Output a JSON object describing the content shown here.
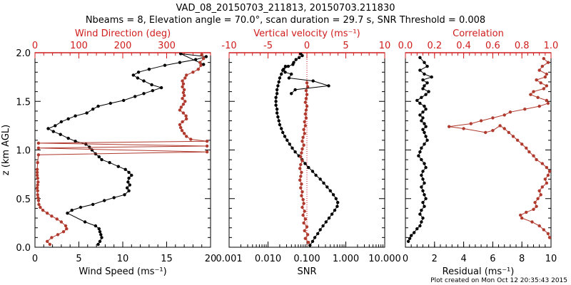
{
  "header": {
    "title_line1": "VAD_08_20150703_211813, 20150703.211830",
    "title_line2": "Nbeams = 8, Elevation angle = 70.0°, scan duration = 29.7 s, SNR Threshold = 0.008"
  },
  "footer": {
    "note": "Plot created on Mon Oct 12 20:35:43 2015"
  },
  "colors": {
    "primary": "#000000",
    "secondary": "#b03a2e",
    "secondary_axis": "#d01c1c"
  },
  "chart_data": [
    {
      "type": "line",
      "panel": "left",
      "title": "Wind Direction (deg)",
      "ylabel": "z (km AGL)",
      "ylim": [
        0,
        2
      ],
      "yticks": [
        "0.0",
        "0.5",
        "1.0",
        "1.5",
        "2.0"
      ],
      "bottom_axis": {
        "label": "Wind Speed (ms⁻¹)",
        "range": [
          0,
          20
        ],
        "ticks": [
          "0",
          "5",
          "10",
          "15",
          "20"
        ]
      },
      "top_axis": {
        "label": "Wind Direction (deg)",
        "range": [
          0,
          400
        ],
        "ticks": [
          "0",
          "100",
          "200",
          "300"
        ]
      },
      "series": [
        {
          "name": "Wind Speed",
          "axis": "bottom",
          "color": "#000000",
          "x": [
            7.2,
            7.4,
            7.6,
            7.5,
            7.4,
            7.3,
            6.9,
            5.7,
            3.7,
            4.2,
            5.2,
            6.6,
            7.9,
            9.0,
            10.2,
            10.7,
            10.5,
            10.8,
            10.6,
            10.7,
            11.0,
            10.7,
            10.3,
            9.5,
            8.5,
            7.6,
            7.3,
            6.9,
            6.5,
            6.2,
            5.8,
            4.6,
            3.8,
            2.9,
            2.1,
            1.5,
            2.3,
            3.0,
            3.8,
            4.6,
            5.9,
            6.6,
            7.2,
            8.6,
            10.1,
            11.4,
            12.4,
            13.4,
            14.4,
            13.3,
            12.4,
            11.7,
            11.2,
            11.8,
            13.0,
            14.8,
            16.5,
            18.3,
            19.5,
            16.6,
            19.2
          ],
          "y": [
            0.03,
            0.06,
            0.1,
            0.13,
            0.16,
            0.19,
            0.22,
            0.26,
            0.35,
            0.38,
            0.41,
            0.44,
            0.48,
            0.51,
            0.54,
            0.58,
            0.61,
            0.64,
            0.67,
            0.71,
            0.74,
            0.77,
            0.8,
            0.83,
            0.87,
            0.9,
            0.93,
            0.96,
            1.0,
            1.03,
            1.06,
            1.09,
            1.12,
            1.16,
            1.19,
            1.22,
            1.25,
            1.29,
            1.32,
            1.35,
            1.38,
            1.42,
            1.45,
            1.48,
            1.51,
            1.55,
            1.58,
            1.61,
            1.64,
            1.67,
            1.71,
            1.74,
            1.77,
            1.8,
            1.83,
            1.87,
            1.9,
            1.93,
            1.96,
            1.99,
            1.88
          ]
        },
        {
          "name": "Wind Direction",
          "axis": "top",
          "color": "#b03a2e",
          "x": [
            34,
            28,
            38,
            52,
            65,
            72,
            70,
            60,
            50,
            38,
            28,
            18,
            12,
            9,
            8,
            7,
            6,
            6,
            5,
            6,
            7,
            6,
            5,
            5,
            5,
            6,
            8,
            392,
            8,
            392,
            8,
            392,
            355,
            345,
            340,
            335,
            332,
            330,
            336,
            345,
            344,
            338,
            330,
            333,
            338,
            342,
            336,
            340,
            338,
            340,
            336,
            338,
            336,
            342,
            345,
            360,
            372,
            378,
            376,
            384,
            380
          ],
          "y": [
            0.03,
            0.06,
            0.1,
            0.13,
            0.16,
            0.19,
            0.22,
            0.26,
            0.29,
            0.32,
            0.35,
            0.38,
            0.41,
            0.44,
            0.48,
            0.51,
            0.54,
            0.58,
            0.61,
            0.64,
            0.67,
            0.71,
            0.74,
            0.77,
            0.8,
            0.87,
            0.95,
            0.98,
            1.02,
            1.04,
            1.07,
            1.09,
            1.11,
            1.14,
            1.17,
            1.2,
            1.23,
            1.26,
            1.29,
            1.32,
            1.35,
            1.38,
            1.41,
            1.44,
            1.47,
            1.5,
            1.53,
            1.56,
            1.59,
            1.62,
            1.65,
            1.68,
            1.71,
            1.74,
            1.77,
            1.8,
            1.83,
            1.87,
            1.9,
            1.94,
            1.98
          ]
        }
      ]
    },
    {
      "type": "line",
      "panel": "middle",
      "title": "Vertical velocity (ms⁻¹)",
      "ylim": [
        0,
        2
      ],
      "bottom_axis": {
        "label": "SNR",
        "scale": "log",
        "range": [
          0.001,
          10
        ],
        "ticks": [
          "0.001",
          "0.010",
          "0.100",
          "1.000",
          "10.000"
        ]
      },
      "top_axis": {
        "label": "Vertical velocity (ms⁻¹)",
        "range": [
          -10,
          10
        ],
        "ticks": [
          "-10",
          "-5",
          "0",
          "5",
          "10"
        ]
      },
      "series": [
        {
          "name": "SNR",
          "axis": "bottom",
          "scale": "log",
          "color": "#000000",
          "x": [
            0.12,
            0.14,
            0.16,
            0.19,
            0.22,
            0.26,
            0.31,
            0.37,
            0.44,
            0.52,
            0.6,
            0.62,
            0.56,
            0.48,
            0.4,
            0.33,
            0.27,
            0.22,
            0.17,
            0.14,
            0.11,
            0.09,
            0.075,
            0.062,
            0.05,
            0.042,
            0.036,
            0.031,
            0.027,
            0.024,
            0.022,
            0.02,
            0.019,
            0.018,
            0.017,
            0.017,
            0.016,
            0.016,
            0.016,
            0.017,
            0.017,
            0.018,
            0.019,
            0.02,
            0.022,
            0.024,
            0.028
          ],
          "y": [
            0.02,
            0.06,
            0.1,
            0.14,
            0.18,
            0.22,
            0.26,
            0.3,
            0.34,
            0.38,
            0.42,
            0.46,
            0.5,
            0.54,
            0.58,
            0.62,
            0.66,
            0.7,
            0.74,
            0.78,
            0.82,
            0.86,
            0.9,
            0.94,
            0.98,
            1.02,
            1.06,
            1.1,
            1.14,
            1.18,
            1.22,
            1.26,
            1.3,
            1.34,
            1.38,
            1.42,
            1.46,
            1.5,
            1.54,
            1.58,
            1.62,
            1.66,
            1.7,
            1.74,
            1.78,
            1.82,
            1.86
          ]
        },
        {
          "name": "Vertical velocity",
          "axis": "top",
          "color": "#b03a2e",
          "x": [
            0.2,
            -0.2,
            0.1,
            -0.3,
            0.0,
            -0.4,
            -0.2,
            -0.5,
            -0.3,
            -0.6,
            -0.4,
            -0.5,
            -0.7,
            -0.6,
            -0.8,
            -0.7,
            -0.9,
            -0.8,
            -0.7,
            -0.9,
            -0.8,
            -0.6,
            -0.8,
            -0.7,
            -0.6,
            -0.4,
            -0.6,
            -0.5,
            -0.3,
            -0.4,
            -0.2,
            -0.3,
            -0.1,
            -0.2,
            -0.1,
            0.0,
            -0.2,
            -0.1,
            0.0,
            -0.1,
            0.1,
            0.0
          ],
          "y": [
            0.05,
            0.09,
            0.13,
            0.17,
            0.21,
            0.25,
            0.29,
            0.33,
            0.37,
            0.41,
            0.45,
            0.49,
            0.53,
            0.57,
            0.61,
            0.65,
            0.69,
            0.73,
            0.77,
            0.81,
            0.85,
            0.89,
            0.93,
            0.97,
            1.01,
            1.05,
            1.09,
            1.13,
            1.17,
            1.21,
            1.25,
            1.29,
            1.33,
            1.37,
            1.41,
            1.45,
            1.49,
            1.53,
            1.57,
            1.61,
            1.65,
            1.69
          ]
        },
        {
          "name": "Vertical velocity (upper)",
          "axis": "top",
          "color": "#000000",
          "x": [
            -2.0,
            -1.5,
            2.8,
            0.8,
            -2.3,
            -2.0,
            -2.8,
            -3.0,
            -2.4,
            -1.8,
            -1.7,
            -1.4,
            -1.0,
            -0.6,
            -0.8
          ],
          "y": [
            1.58,
            1.62,
            1.66,
            1.71,
            1.74,
            1.78,
            1.8,
            1.83,
            1.86,
            1.88,
            1.9,
            1.93,
            1.95,
            1.97,
            1.99
          ]
        }
      ]
    },
    {
      "type": "line",
      "panel": "right",
      "title": "Correlation",
      "ylim": [
        0,
        2
      ],
      "bottom_axis": {
        "label": "Residual (ms⁻¹)",
        "range": [
          0,
          10
        ],
        "ticks": [
          "0",
          "2",
          "4",
          "6",
          "8",
          "10"
        ]
      },
      "top_axis": {
        "label": "Correlation",
        "range": [
          0,
          1
        ],
        "ticks": [
          "0.0",
          "0.2",
          "0.4",
          "0.6",
          "0.8",
          "1.0"
        ]
      },
      "series": [
        {
          "name": "Residual",
          "axis": "bottom",
          "color": "#000000",
          "x": [
            0.2,
            0.3,
            0.4,
            0.6,
            0.8,
            1.0,
            1.1,
            1.2,
            1.0,
            1.1,
            1.3,
            1.2,
            1.4,
            1.3,
            1.2,
            1.1,
            1.3,
            1.2,
            1.1,
            1.2,
            1.4,
            1.3,
            1.1,
            0.9,
            1.0,
            1.1,
            1.3,
            1.5,
            1.4,
            1.3,
            1.2,
            1.4,
            1.3,
            1.1,
            1.2,
            1.0,
            1.2,
            1.4,
            1.3,
            1.0,
            0.8,
            1.1,
            1.4,
            1.6,
            1.2,
            1.3,
            1.5,
            1.2,
            1.8,
            1.3,
            1.0,
            1.5,
            1.3,
            1.0
          ],
          "y": [
            0.06,
            0.09,
            0.12,
            0.15,
            0.19,
            0.22,
            0.26,
            0.3,
            0.34,
            0.38,
            0.42,
            0.46,
            0.5,
            0.54,
            0.58,
            0.62,
            0.66,
            0.7,
            0.74,
            0.78,
            0.82,
            0.86,
            0.9,
            0.94,
            0.98,
            1.02,
            1.06,
            1.1,
            1.14,
            1.18,
            1.21,
            1.24,
            1.27,
            1.3,
            1.33,
            1.36,
            1.39,
            1.42,
            1.45,
            1.48,
            1.51,
            1.54,
            1.57,
            1.6,
            1.63,
            1.66,
            1.69,
            1.72,
            1.75,
            1.78,
            1.82,
            1.86,
            1.9,
            1.95
          ]
        },
        {
          "name": "Correlation",
          "axis": "top",
          "color": "#b03a2e",
          "x": [
            0.99,
            0.98,
            0.95,
            0.92,
            0.87,
            0.8,
            0.79,
            0.83,
            0.88,
            0.9,
            0.89,
            0.91,
            0.93,
            0.92,
            0.94,
            0.97,
            0.96,
            0.98,
            0.99,
            0.97,
            0.94,
            0.9,
            0.88,
            0.85,
            0.83,
            0.8,
            0.77,
            0.74,
            0.71,
            0.68,
            0.65,
            0.6,
            0.55,
            0.4,
            0.3,
            0.45,
            0.52,
            0.6,
            0.68,
            0.72,
            0.82,
            0.92,
            0.98,
            0.97,
            0.91,
            0.86,
            0.88,
            0.95,
            0.97,
            0.93,
            0.9,
            0.96,
            0.97,
            0.92,
            0.94,
            0.98,
            0.95
          ],
          "y": [
            0.1,
            0.14,
            0.18,
            0.22,
            0.26,
            0.3,
            0.33,
            0.36,
            0.39,
            0.42,
            0.46,
            0.5,
            0.54,
            0.58,
            0.62,
            0.66,
            0.7,
            0.74,
            0.78,
            0.82,
            0.86,
            0.9,
            0.94,
            0.98,
            1.02,
            1.06,
            1.1,
            1.14,
            1.18,
            1.22,
            1.25,
            1.2,
            1.18,
            1.22,
            1.24,
            1.27,
            1.3,
            1.33,
            1.36,
            1.39,
            1.42,
            1.45,
            1.48,
            1.51,
            1.54,
            1.57,
            1.6,
            1.63,
            1.66,
            1.69,
            1.72,
            1.75,
            1.78,
            1.82,
            1.86,
            1.9,
            1.94
          ]
        }
      ]
    }
  ]
}
